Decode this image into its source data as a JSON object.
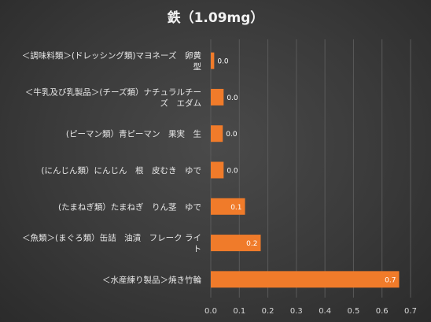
{
  "chart_data": {
    "type": "bar",
    "orientation": "horizontal",
    "title": "鉄（1.09mg）",
    "xlabel": "",
    "ylabel": "",
    "xlim": [
      0,
      0.7
    ],
    "ticks": [
      "0.0",
      "0.1",
      "0.2",
      "0.3",
      "0.4",
      "0.5",
      "0.6",
      "0.7"
    ],
    "grid": true,
    "bar_color": "#f07b2a",
    "categories": [
      [
        "＜調味料類＞(ドレッシング類)マヨネーズ　卵黄",
        "型"
      ],
      [
        "＜牛乳及び乳製品＞(チーズ類）ナチュラルチー",
        "ズ　エダム"
      ],
      [
        "(ピーマン類）青ピーマン　果実　生"
      ],
      [
        "(にんじん類）にんじん　根　皮むき　ゆで"
      ],
      [
        "(たまねぎ類）たまねぎ　りん茎　ゆで"
      ],
      [
        "＜魚類＞(まぐろ類）缶詰　油漬　フレーク ライ",
        "ト"
      ],
      [
        "＜水産練り製品＞焼き竹輪"
      ]
    ],
    "values": [
      0.012,
      0.045,
      0.042,
      0.045,
      0.12,
      0.175,
      0.66
    ],
    "labels": [
      "0.0",
      "0.0",
      "0.0",
      "0.0",
      "0.1",
      "0.2",
      "0.7"
    ]
  }
}
